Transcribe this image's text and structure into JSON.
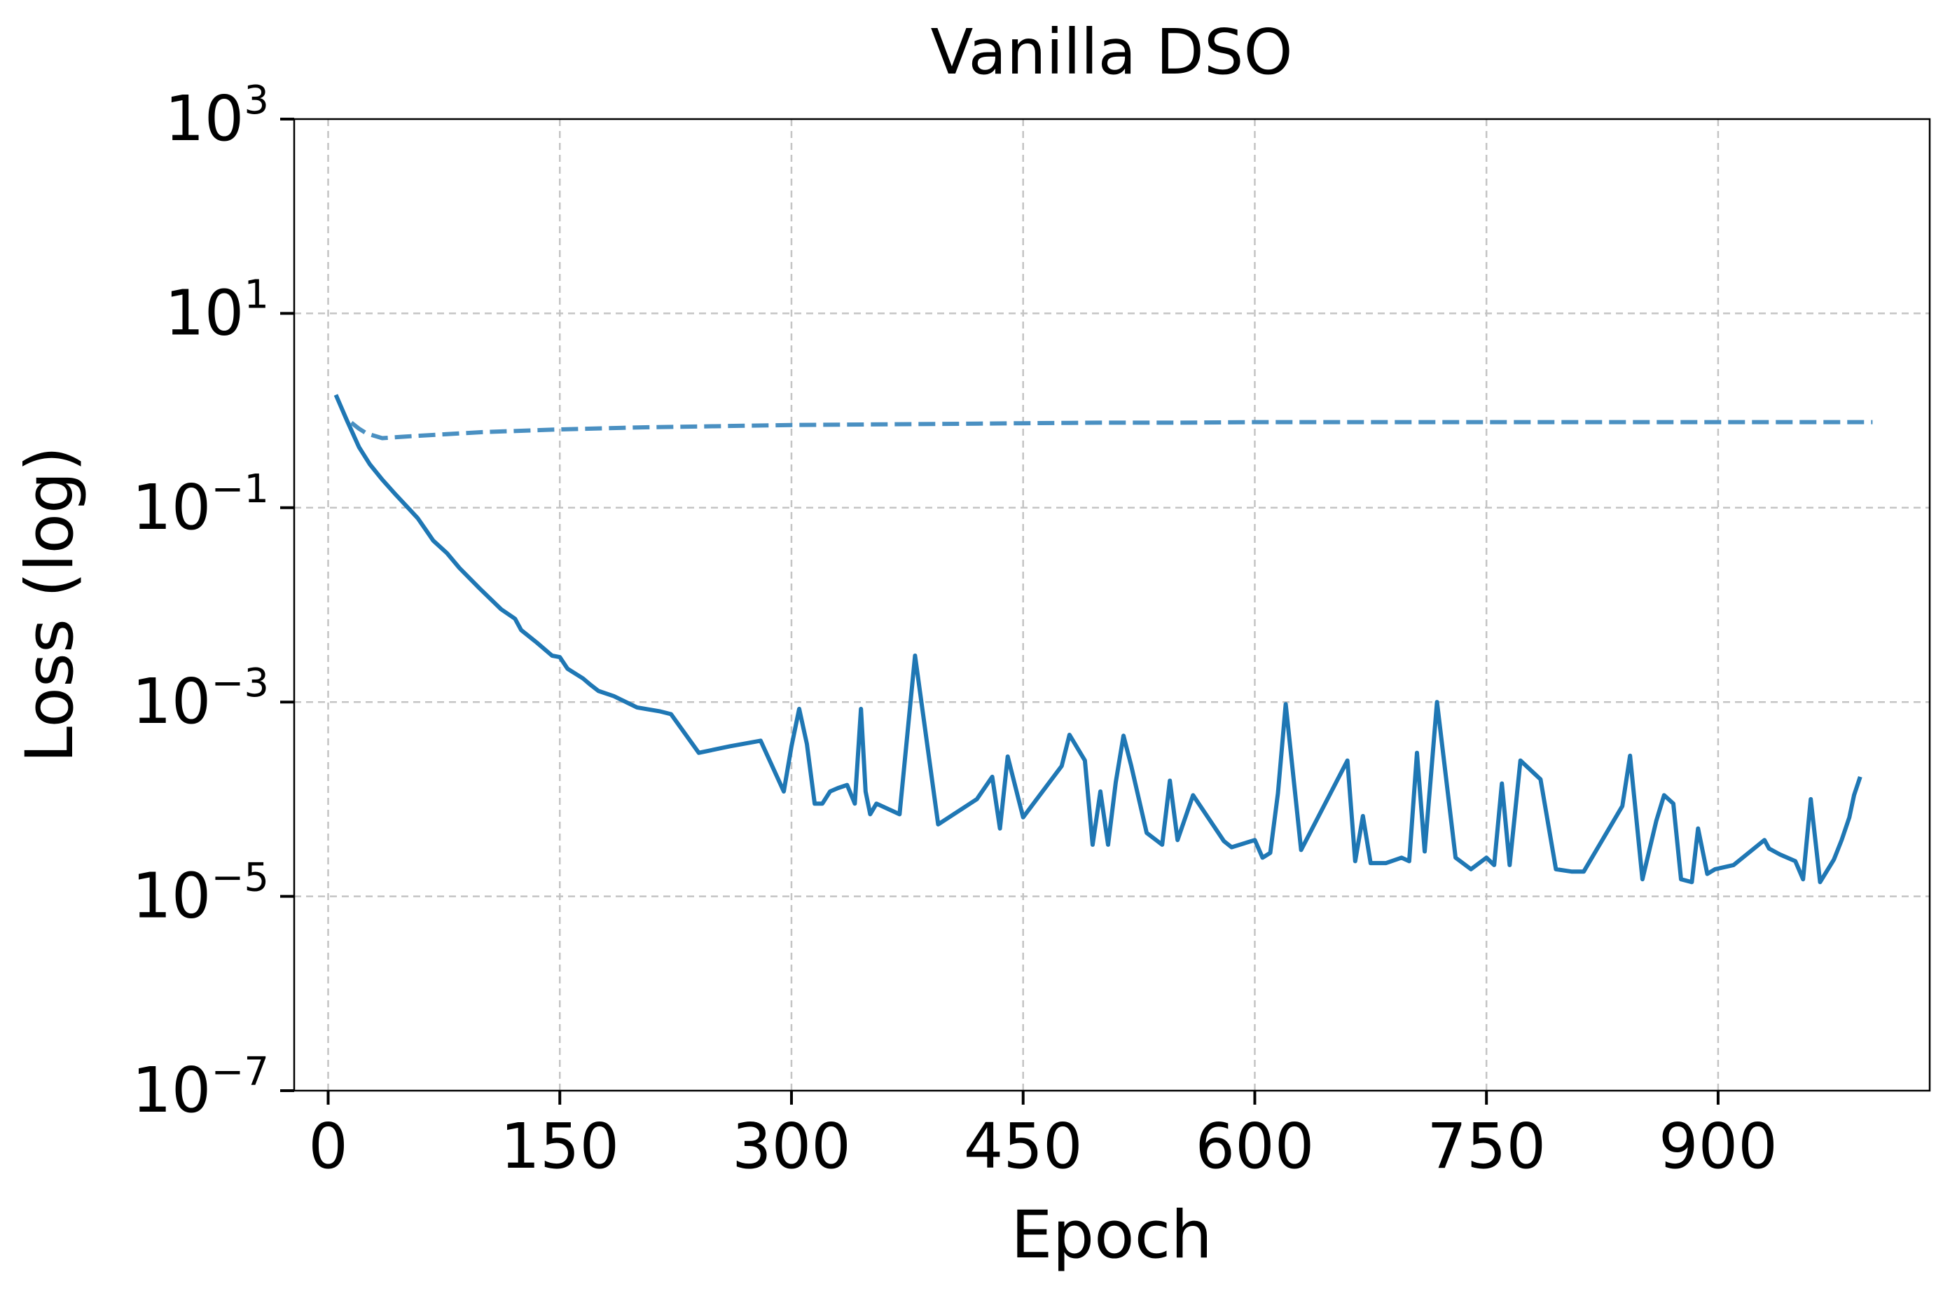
{
  "chart_data": {
    "type": "line",
    "title": "Vanilla DSO",
    "xlabel": "Epoch",
    "ylabel": "Loss (log)",
    "xlim": [
      -22,
      1037
    ],
    "ylim": [
      1e-07,
      1000
    ],
    "yscale": "log",
    "grid": true,
    "x_ticks": [
      0,
      150,
      300,
      450,
      600,
      750,
      900
    ],
    "x_tick_labels": [
      "0",
      "150",
      "300",
      "450",
      "600",
      "750",
      "900"
    ],
    "y_ticks": [
      {
        "value": 1000.0,
        "base": "10",
        "exp": "3"
      },
      {
        "value": 10.0,
        "base": "10",
        "exp": "1"
      },
      {
        "value": 0.1,
        "base": "10",
        "exp": "−1"
      },
      {
        "value": 0.001,
        "base": "10",
        "exp": "−3"
      },
      {
        "value": 1e-05,
        "base": "10",
        "exp": "−5"
      },
      {
        "value": 1e-07,
        "base": "10",
        "exp": "−7"
      }
    ],
    "series": [
      {
        "style": "solid",
        "color": "#1f77b4",
        "x": [
          5,
          12,
          20,
          27,
          35,
          44,
          53,
          58,
          63,
          68,
          77,
          85,
          98,
          112,
          121,
          125,
          135,
          145,
          150,
          155,
          165,
          170,
          175,
          185,
          200,
          215,
          222,
          240,
          260,
          280,
          295,
          300,
          305,
          310,
          315,
          320,
          325,
          330,
          336,
          341,
          345,
          348,
          351,
          355,
          370,
          380,
          395,
          420,
          430,
          435,
          440,
          450,
          475,
          480,
          490,
          495,
          500,
          505,
          510,
          515,
          520,
          530,
          540,
          545,
          550,
          560,
          580,
          585,
          600,
          605,
          610,
          615,
          620,
          630,
          660,
          665,
          670,
          675,
          685,
          695,
          700,
          705,
          710,
          718,
          730,
          740,
          750,
          755,
          760,
          765,
          772,
          785,
          795,
          805,
          808,
          813,
          838,
          843,
          851,
          860,
          865,
          871,
          876,
          883,
          887,
          893,
          898,
          910,
          930,
          933,
          940,
          950,
          955,
          960,
          966,
          975,
          980,
          985,
          988,
          992
        ],
        "y": [
          1.45,
          0.8,
          0.42,
          0.28,
          0.195,
          0.135,
          0.095,
          0.078,
          0.06,
          0.046,
          0.034,
          0.024,
          0.0148,
          0.009,
          0.0072,
          0.0055,
          0.0041,
          0.003,
          0.0029,
          0.0022,
          0.00175,
          0.0015,
          0.0013,
          0.00115,
          0.00088,
          0.0008,
          0.00075,
          0.0003,
          0.00035,
          0.0004,
          0.00012,
          0.00035,
          0.00085,
          0.00037,
          9e-05,
          9e-05,
          0.00012,
          0.00013,
          0.00014,
          9e-05,
          0.00085,
          0.00012,
          7e-05,
          9e-05,
          7e-05,
          0.003,
          5.5e-05,
          0.0001,
          0.00017,
          5e-05,
          0.000275,
          6.5e-05,
          0.00022,
          0.00046,
          0.00025,
          3.4e-05,
          0.00012,
          3.4e-05,
          0.00015,
          0.00045,
          0.00022,
          4.5e-05,
          3.4e-05,
          0.000155,
          3.8e-05,
          0.00011,
          3.7e-05,
          3.2e-05,
          3.8e-05,
          2.5e-05,
          2.8e-05,
          0.000115,
          0.00095,
          3e-05,
          0.00025,
          2.3e-05,
          6.7e-05,
          2.2e-05,
          2.2e-05,
          2.5e-05,
          2.3e-05,
          0.0003,
          2.9e-05,
          0.001,
          2.5e-05,
          1.9e-05,
          2.5e-05,
          2.1e-05,
          0.000145,
          2.1e-05,
          0.00025,
          0.00016,
          1.9e-05,
          1.8e-05,
          1.8e-05,
          1.8e-05,
          8.5e-05,
          0.00028,
          1.5e-05,
          6e-05,
          0.00011,
          9e-05,
          1.5e-05,
          1.4e-05,
          5e-05,
          1.7e-05,
          1.9e-05,
          2.1e-05,
          3.8e-05,
          3.1e-05,
          2.7e-05,
          2.3e-05,
          1.5e-05,
          0.0001,
          1.4e-05,
          2.4e-05,
          3.8e-05,
          6.5e-05,
          0.00011,
          0.00017
        ],
        "y_note": ""
      },
      {
        "style": "dashed",
        "color": "#4a90c2",
        "x": [
          15,
          20,
          25,
          35,
          50,
          75,
          100,
          150,
          200,
          250,
          300,
          350,
          400,
          450,
          500,
          550,
          600,
          650,
          700,
          750,
          800,
          850,
          900,
          950,
          1000
        ],
        "y": [
          0.75,
          0.65,
          0.58,
          0.52,
          0.54,
          0.57,
          0.6,
          0.64,
          0.67,
          0.69,
          0.71,
          0.72,
          0.73,
          0.74,
          0.75,
          0.75,
          0.76,
          0.76,
          0.76,
          0.76,
          0.76,
          0.76,
          0.76,
          0.76,
          0.76
        ]
      }
    ]
  }
}
